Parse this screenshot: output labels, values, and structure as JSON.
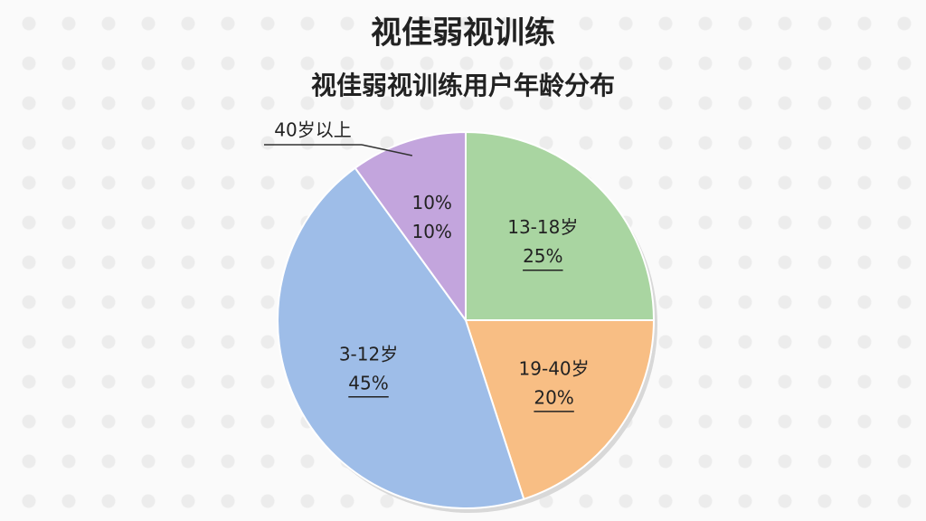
{
  "chart_data": {
    "type": "pie",
    "title": "视佳弱视训练",
    "subtitle": "视佳弱视训练用户年龄分布",
    "categories": [
      "13-18岁",
      "19-40岁",
      "3-12岁",
      "40岁以上"
    ],
    "values": [
      25,
      20,
      45,
      10
    ],
    "value_labels": [
      "25%",
      "20%",
      "45%",
      "10%"
    ],
    "colors": [
      "#a9d5a1",
      "#f8be84",
      "#9ebde8",
      "#c3a5dd"
    ],
    "label_outside": [
      false,
      false,
      false,
      true
    ],
    "annotations": [
      "10%"
    ]
  }
}
